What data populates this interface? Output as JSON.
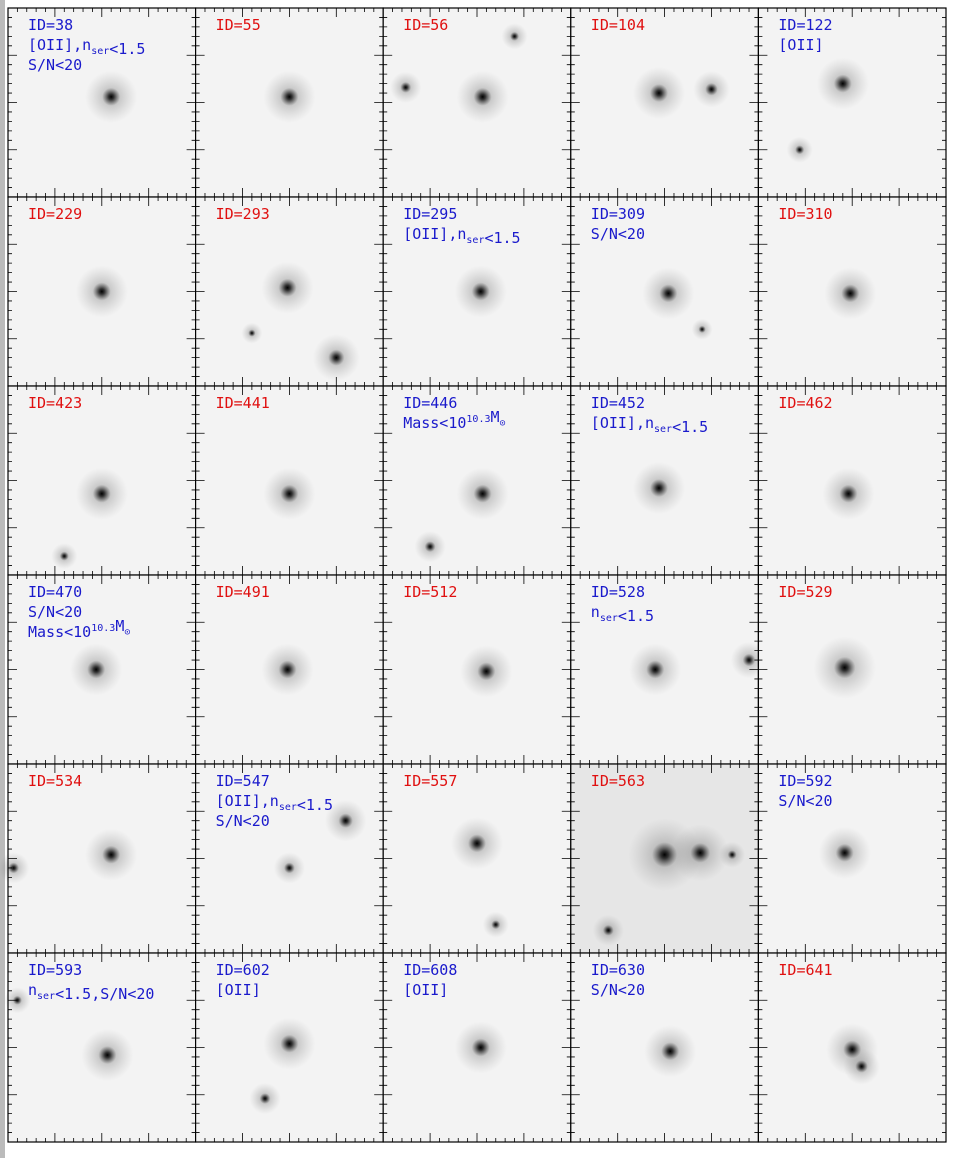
{
  "panels": [
    {
      "id": "ID=38",
      "color": "#1a1acc",
      "notes": [
        [
          "[OII],n",
          {
            "sub": "ser"
          },
          "<1.5"
        ],
        [
          "S/N<20"
        ]
      ]
    },
    {
      "id": "ID=55",
      "color": "#e01010",
      "notes": []
    },
    {
      "id": "ID=56",
      "color": "#e01010",
      "notes": []
    },
    {
      "id": "ID=104",
      "color": "#e01010",
      "notes": []
    },
    {
      "id": "ID=122",
      "color": "#1a1acc",
      "notes": [
        [
          "[OII]"
        ]
      ]
    },
    {
      "id": "ID=229",
      "color": "#e01010",
      "notes": []
    },
    {
      "id": "ID=293",
      "color": "#e01010",
      "notes": []
    },
    {
      "id": "ID=295",
      "color": "#1a1acc",
      "notes": [
        [
          "[OII],n",
          {
            "sub": "ser"
          },
          "<1.5"
        ]
      ]
    },
    {
      "id": "ID=309",
      "color": "#1a1acc",
      "notes": [
        [
          "S/N<20"
        ]
      ]
    },
    {
      "id": "ID=310",
      "color": "#e01010",
      "notes": []
    },
    {
      "id": "ID=423",
      "color": "#e01010",
      "notes": []
    },
    {
      "id": "ID=441",
      "color": "#e01010",
      "notes": []
    },
    {
      "id": "ID=446",
      "color": "#1a1acc",
      "notes": [
        [
          "Mass<10",
          {
            "sup": "10.3"
          },
          "M",
          {
            "sub": "⊙"
          }
        ]
      ]
    },
    {
      "id": "ID=452",
      "color": "#1a1acc",
      "notes": [
        [
          "[OII],n",
          {
            "sub": "ser"
          },
          "<1.5"
        ]
      ]
    },
    {
      "id": "ID=462",
      "color": "#e01010",
      "notes": []
    },
    {
      "id": "ID=470",
      "color": "#1a1acc",
      "notes": [
        [
          "S/N<20"
        ],
        [
          "Mass<10",
          {
            "sup": "10.3"
          },
          "M",
          {
            "sub": "⊙"
          }
        ]
      ]
    },
    {
      "id": "ID=491",
      "color": "#e01010",
      "notes": []
    },
    {
      "id": "ID=512",
      "color": "#e01010",
      "notes": []
    },
    {
      "id": "ID=528",
      "color": "#1a1acc",
      "notes": [
        [
          "n",
          {
            "sub": "ser"
          },
          "<1.5"
        ]
      ]
    },
    {
      "id": "ID=529",
      "color": "#e01010",
      "notes": []
    },
    {
      "id": "ID=534",
      "color": "#e01010",
      "notes": []
    },
    {
      "id": "ID=547",
      "color": "#1a1acc",
      "notes": [
        [
          "[OII],n",
          {
            "sub": "ser"
          },
          "<1.5"
        ],
        [
          "S/N<20"
        ]
      ]
    },
    {
      "id": "ID=557",
      "color": "#e01010",
      "notes": []
    },
    {
      "id": "ID=563",
      "color": "#e01010",
      "notes": []
    },
    {
      "id": "ID=592",
      "color": "#1a1acc",
      "notes": [
        [
          "S/N<20"
        ]
      ]
    },
    {
      "id": "ID=593",
      "color": "#1a1acc",
      "notes": [
        [
          "n",
          {
            "sub": "ser"
          },
          "<1.5,S/N<20"
        ]
      ]
    },
    {
      "id": "ID=602",
      "color": "#1a1acc",
      "notes": [
        [
          "[OII]"
        ]
      ]
    },
    {
      "id": "ID=608",
      "color": "#1a1acc",
      "notes": [
        [
          "[OII]"
        ]
      ]
    },
    {
      "id": "ID=630",
      "color": "#1a1acc",
      "notes": [
        [
          "S/N<20"
        ]
      ]
    },
    {
      "id": "ID=641",
      "color": "#e01010",
      "notes": []
    }
  ]
}
